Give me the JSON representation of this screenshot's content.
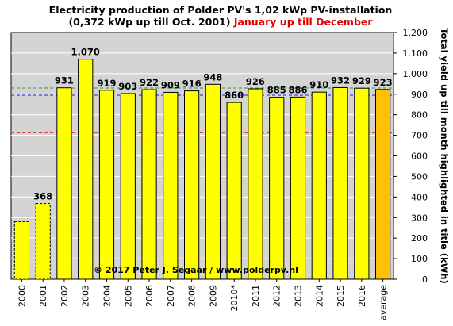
{
  "chart_data": {
    "type": "bar",
    "title_line1": "Electricity production  of Polder  PV's 1,02 kWp PV-installation",
    "title_line2_black": "(0,372 kWp up till Oct. 2001)",
    "title_line2_red": "January up till December",
    "ylabel": "Total yield up till month highlighted in title (kWh)",
    "copyright": "© 2017 Peter J. Segaar / www.polderpv.nl",
    "ylim": [
      0,
      1200
    ],
    "yticks": [
      0,
      100,
      200,
      300,
      400,
      500,
      600,
      700,
      800,
      900,
      1000,
      1100,
      1200
    ],
    "ytick_labels": [
      "0",
      "100",
      "200",
      "300",
      "400",
      "500",
      "600",
      "700",
      "800",
      "900",
      "1.000",
      "1.100",
      "1.200"
    ],
    "grid": true,
    "categories": [
      "2000",
      "2001",
      "2002",
      "2003",
      "2004",
      "2005",
      "2006",
      "2007",
      "2008",
      "2009",
      "2010*",
      "2011",
      "2012",
      "2013",
      "2014",
      "2015",
      "2016",
      "average"
    ],
    "values": [
      280,
      368,
      931,
      1070,
      919,
      903,
      922,
      909,
      916,
      948,
      860,
      926,
      885,
      886,
      910,
      932,
      929,
      923
    ],
    "data_labels": [
      "",
      "368",
      "931",
      "1.070",
      "919",
      "903",
      "922",
      "909",
      "916",
      "948",
      "860",
      "926",
      "885",
      "886",
      "910",
      "932",
      "929",
      "923"
    ],
    "reference_lines": [
      {
        "value": 930,
        "color": "#2e9b2e"
      },
      {
        "value": 895,
        "color": "#1a1ad0"
      },
      {
        "value": 712,
        "color": "#e04040"
      }
    ],
    "colors": {
      "plot_bg": "#d4d4d4",
      "bar": "#ffff00",
      "bar_average": "#ffc000",
      "label_2010": "#8c8c8c",
      "label_average": "#e00000"
    }
  }
}
